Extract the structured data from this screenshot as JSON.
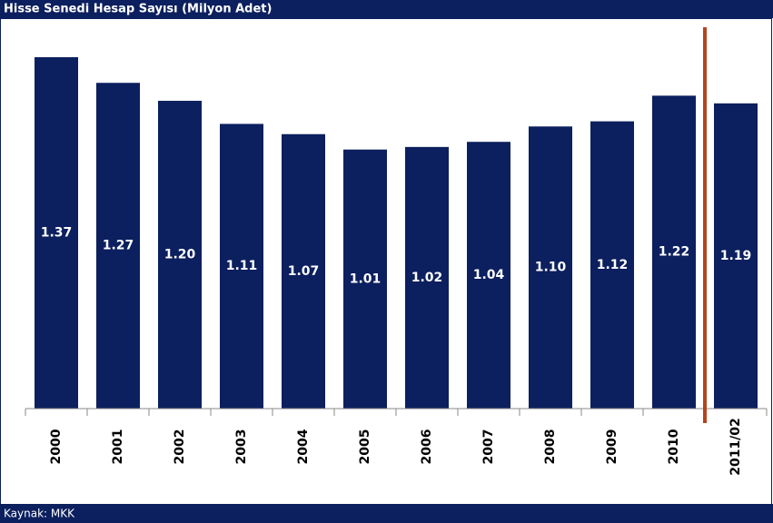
{
  "chart_data": {
    "type": "bar",
    "title": "Hisse Senedi Hesap Sayısı (Milyon Adet)",
    "source": "Kaynak: MKK",
    "categories": [
      "2000",
      "2001",
      "2002",
      "2003",
      "2004",
      "2005",
      "2006",
      "2007",
      "2008",
      "2009",
      "2010",
      "2011/02"
    ],
    "values": [
      1.37,
      1.27,
      1.2,
      1.11,
      1.07,
      1.01,
      1.02,
      1.04,
      1.1,
      1.12,
      1.22,
      1.19
    ],
    "value_labels": [
      "1.37",
      "1.27",
      "1.20",
      "1.11",
      "1.07",
      "1.01",
      "1.02",
      "1.04",
      "1.10",
      "1.12",
      "1.22",
      "1.19"
    ],
    "color": "#0c1f5e"
  }
}
